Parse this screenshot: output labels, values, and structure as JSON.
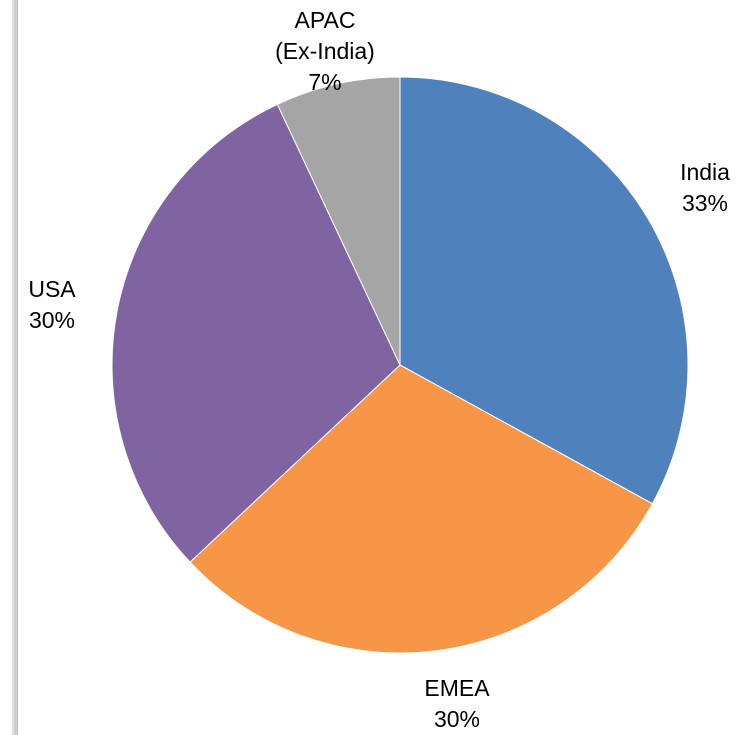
{
  "chart_data": {
    "type": "pie",
    "title": "",
    "start_angle_deg": 0,
    "direction": "clockwise",
    "slices": [
      {
        "label_lines": [
          "India"
        ],
        "value": 33,
        "pct_label": "33%",
        "color": "#4F81BD"
      },
      {
        "label_lines": [
          "EMEA"
        ],
        "value": 30,
        "pct_label": "30%",
        "color": "#F79646"
      },
      {
        "label_lines": [
          "USA"
        ],
        "value": 30,
        "pct_label": "30%",
        "color": "#8064A2"
      },
      {
        "label_lines": [
          "APAC",
          "(Ex-India)"
        ],
        "value": 7,
        "pct_label": "7%",
        "color": "#A5A5A5"
      }
    ]
  }
}
